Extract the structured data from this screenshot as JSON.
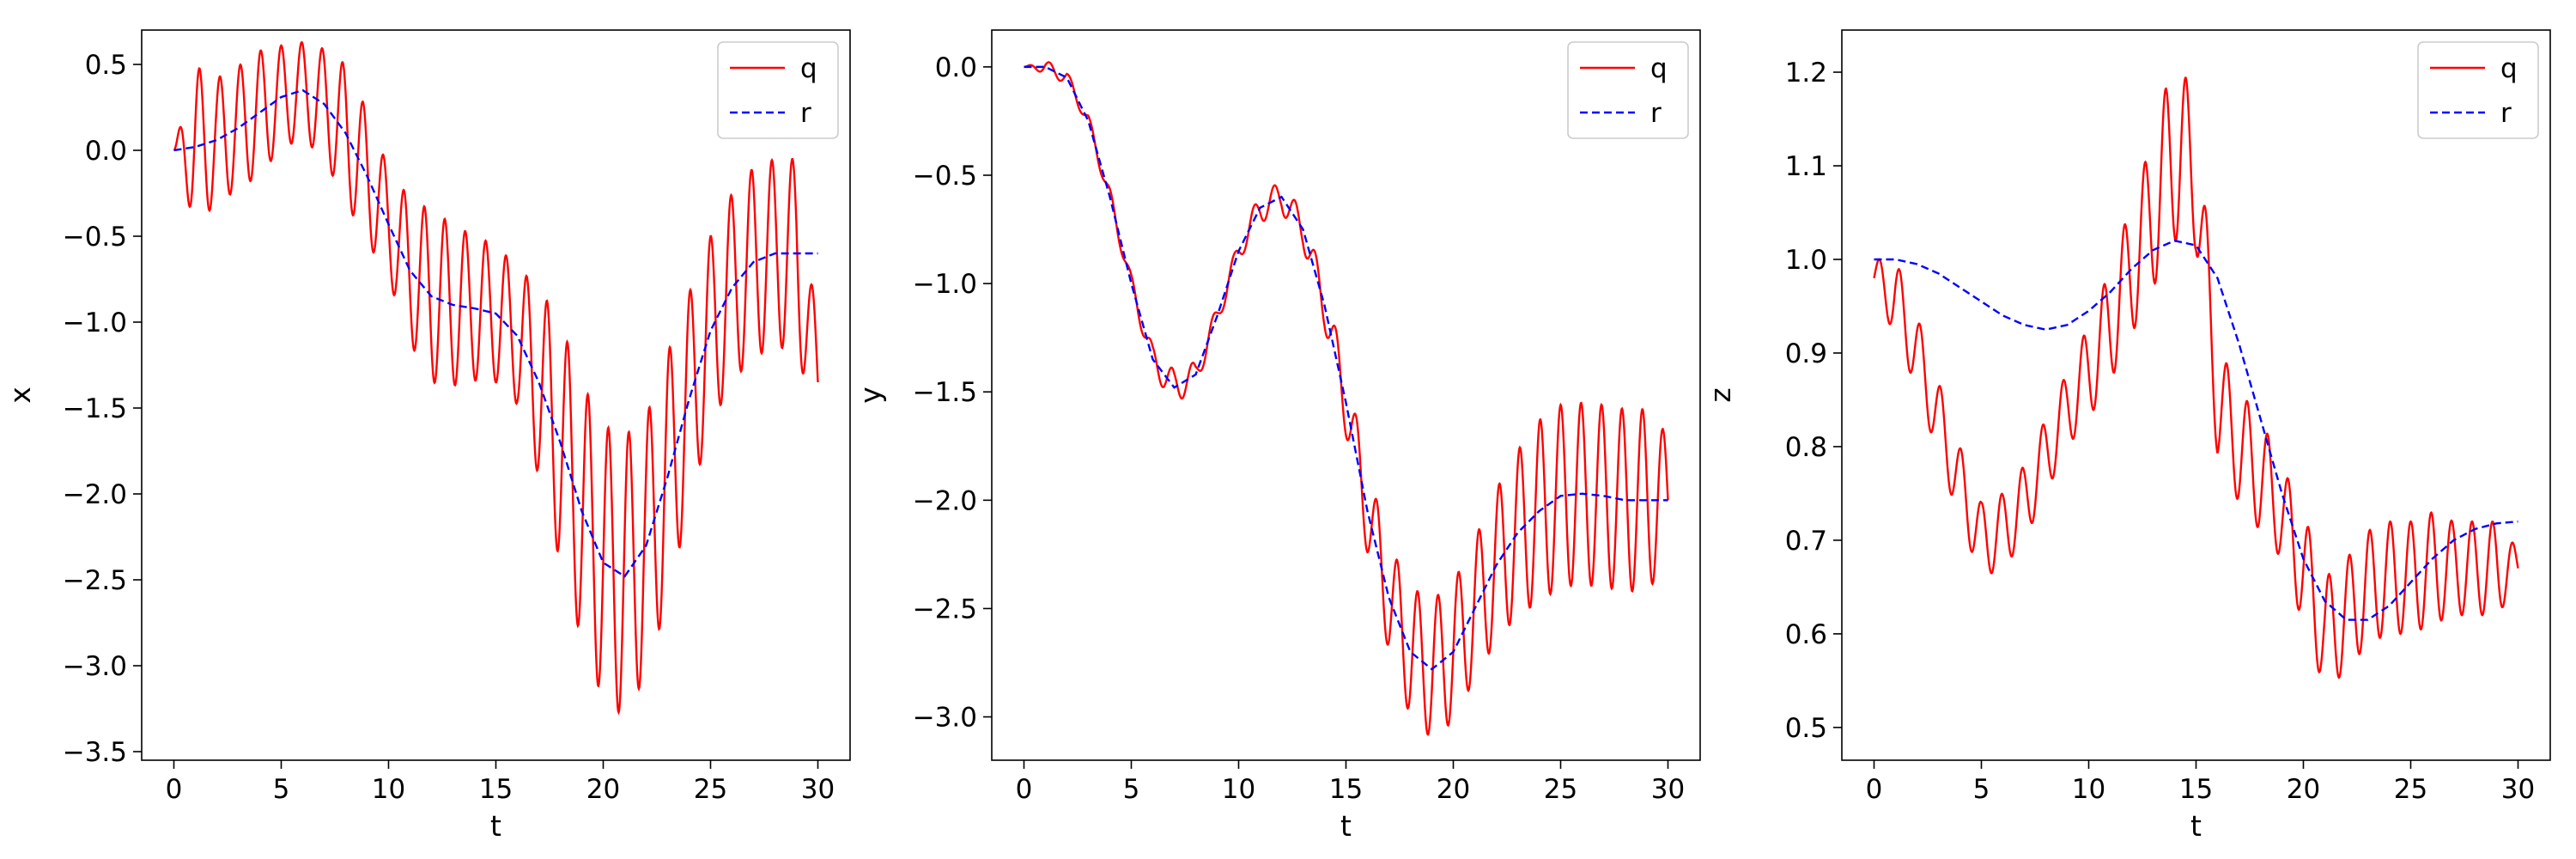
{
  "chart_data": [
    {
      "type": "line",
      "ylabel": "x",
      "xlabel": "t",
      "xlim": [
        -1.5,
        31.5
      ],
      "ylim": [
        -3.55,
        0.7
      ],
      "xticks": [
        0,
        5,
        10,
        15,
        20,
        25,
        30
      ],
      "xtick_labels": [
        "0",
        "5",
        "10",
        "15",
        "20",
        "25",
        "30"
      ],
      "yticks": [
        -3.5,
        -3.0,
        -2.5,
        -2.0,
        -1.5,
        -1.0,
        -0.5,
        0.0,
        0.5
      ],
      "ytick_labels": [
        "−3.5",
        "−3.0",
        "−2.5",
        "−2.0",
        "−1.5",
        "−1.0",
        "−0.5",
        "0.0",
        "0.5"
      ],
      "legend": "top-right",
      "series": [
        {
          "name": "q",
          "color": "#ff0000",
          "style": "solid",
          "x": [
            0,
            1,
            2,
            3,
            4,
            5,
            6,
            7,
            8,
            9,
            10,
            11,
            12,
            13,
            14,
            15,
            16,
            17,
            18,
            19,
            20,
            21,
            22,
            23,
            24,
            25,
            26,
            27,
            28,
            29,
            30
          ],
          "y": [
            0,
            0.02,
            0.06,
            0.13,
            0.22,
            0.31,
            0.35,
            0.27,
            0.1,
            -0.15,
            -0.43,
            -0.7,
            -0.85,
            -0.9,
            -0.92,
            -0.95,
            -1.08,
            -1.35,
            -1.7,
            -2.1,
            -2.4,
            -2.48,
            -2.3,
            -1.9,
            -1.45,
            -1.05,
            -0.8,
            -0.65,
            -0.6,
            -0.6,
            -1.35
          ],
          "amplitude": [
            0,
            0.47,
            0.36,
            0.36,
            0.36,
            0.3,
            0.28,
            0.32,
            0.4,
            0.38,
            0.32,
            0.42,
            0.5,
            0.47,
            0.42,
            0.4,
            0.4,
            0.55,
            0.7,
            0.75,
            0.8,
            0.82,
            0.75,
            0.72,
            0.62,
            0.55,
            0.55,
            0.55,
            0.55,
            0.55,
            0.3
          ]
        },
        {
          "name": "r",
          "color": "#0000ff",
          "style": "dashed",
          "x": [
            0,
            1,
            2,
            3,
            4,
            5,
            6,
            7,
            8,
            9,
            10,
            11,
            12,
            13,
            14,
            15,
            16,
            17,
            18,
            19,
            20,
            21,
            22,
            23,
            24,
            25,
            26,
            27,
            28,
            29,
            30
          ],
          "y": [
            0,
            0.02,
            0.06,
            0.13,
            0.22,
            0.31,
            0.35,
            0.27,
            0.1,
            -0.15,
            -0.43,
            -0.7,
            -0.85,
            -0.9,
            -0.92,
            -0.95,
            -1.08,
            -1.35,
            -1.7,
            -2.1,
            -2.4,
            -2.48,
            -2.3,
            -1.9,
            -1.45,
            -1.05,
            -0.8,
            -0.65,
            -0.6,
            -0.6,
            -0.6
          ]
        }
      ]
    },
    {
      "type": "line",
      "ylabel": "y",
      "xlabel": "t",
      "xlim": [
        -1.5,
        31.5
      ],
      "ylim": [
        -3.2,
        0.17
      ],
      "xticks": [
        0,
        5,
        10,
        15,
        20,
        25,
        30
      ],
      "xtick_labels": [
        "0",
        "5",
        "10",
        "15",
        "20",
        "25",
        "30"
      ],
      "yticks": [
        -3.0,
        -2.5,
        -2.0,
        -1.5,
        -1.0,
        -0.5,
        0.0
      ],
      "ytick_labels": [
        "−3.0",
        "−2.5",
        "−2.0",
        "−1.5",
        "−1.0",
        "−0.5",
        "0.0"
      ],
      "legend": "top-right",
      "series": [
        {
          "name": "q",
          "color": "#ff0000",
          "style": "solid",
          "x": [
            0,
            1,
            2,
            3,
            4,
            5,
            6,
            7,
            8,
            9,
            10,
            11,
            12,
            13,
            14,
            15,
            16,
            17,
            18,
            19,
            20,
            21,
            22,
            23,
            24,
            25,
            26,
            27,
            28,
            29,
            30
          ],
          "y": [
            0,
            0,
            -0.05,
            -0.25,
            -0.6,
            -1.0,
            -1.35,
            -1.48,
            -1.42,
            -1.15,
            -0.85,
            -0.65,
            -0.6,
            -0.75,
            -1.1,
            -1.55,
            -2.05,
            -2.45,
            -2.7,
            -2.78,
            -2.7,
            -2.5,
            -2.3,
            -2.15,
            -2.05,
            -1.98,
            -1.97,
            -1.98,
            -2.0,
            -2.0,
            -2.0
          ],
          "amplitude": [
            0,
            0.03,
            0.03,
            0.03,
            0.04,
            0.04,
            0.06,
            0.08,
            0.06,
            0.05,
            0.05,
            0.07,
            0.07,
            0.08,
            0.1,
            0.15,
            0.2,
            0.25,
            0.3,
            0.32,
            0.32,
            0.32,
            0.35,
            0.38,
            0.42,
            0.42,
            0.42,
            0.42,
            0.42,
            0.42,
            0.3
          ]
        },
        {
          "name": "r",
          "color": "#0000ff",
          "style": "dashed",
          "x": [
            0,
            1,
            2,
            3,
            4,
            5,
            6,
            7,
            8,
            9,
            10,
            11,
            12,
            13,
            14,
            15,
            16,
            17,
            18,
            19,
            20,
            21,
            22,
            23,
            24,
            25,
            26,
            27,
            28,
            29,
            30
          ],
          "y": [
            0,
            0,
            -0.05,
            -0.25,
            -0.6,
            -1.0,
            -1.35,
            -1.48,
            -1.42,
            -1.15,
            -0.85,
            -0.65,
            -0.6,
            -0.75,
            -1.1,
            -1.55,
            -2.05,
            -2.45,
            -2.7,
            -2.78,
            -2.7,
            -2.5,
            -2.3,
            -2.15,
            -2.05,
            -1.98,
            -1.97,
            -1.98,
            -2.0,
            -2.0,
            -2.0
          ]
        }
      ]
    },
    {
      "type": "line",
      "ylabel": "z",
      "xlabel": "t",
      "xlim": [
        -1.5,
        31.5
      ],
      "ylim": [
        0.465,
        1.245
      ],
      "xticks": [
        0,
        5,
        10,
        15,
        20,
        25,
        30
      ],
      "xtick_labels": [
        "0",
        "5",
        "10",
        "15",
        "20",
        "25",
        "30"
      ],
      "yticks": [
        0.5,
        0.6,
        0.7,
        0.8,
        0.9,
        1.0,
        1.1,
        1.2
      ],
      "ytick_labels": [
        "0.5",
        "0.6",
        "0.7",
        "0.8",
        "0.9",
        "1.0",
        "1.1",
        "1.2"
      ],
      "legend": "top-right",
      "series": [
        {
          "name": "q",
          "color": "#ff0000",
          "style": "solid",
          "x": [
            0,
            1,
            2,
            3,
            4,
            5,
            6,
            7,
            8,
            9,
            10,
            11,
            12,
            13,
            14,
            15,
            16,
            17,
            18,
            19,
            20,
            21,
            22,
            23,
            24,
            25,
            26,
            27,
            28,
            29,
            30
          ],
          "y": [
            0.98,
            0.96,
            0.9,
            0.83,
            0.76,
            0.7,
            0.71,
            0.74,
            0.79,
            0.84,
            0.88,
            0.93,
            0.99,
            1.05,
            1.12,
            1.09,
            0.85,
            0.8,
            0.77,
            0.73,
            0.67,
            0.6,
            0.62,
            0.65,
            0.66,
            0.66,
            0.67,
            0.67,
            0.67,
            0.67,
            0.67
          ],
          "amplitude": [
            0.02,
            0.04,
            0.04,
            0.04,
            0.04,
            0.04,
            0.04,
            0.04,
            0.04,
            0.04,
            0.05,
            0.06,
            0.07,
            0.08,
            0.1,
            0.08,
            0.06,
            0.06,
            0.06,
            0.05,
            0.06,
            0.06,
            0.06,
            0.06,
            0.06,
            0.06,
            0.06,
            0.05,
            0.05,
            0.05,
            0.02
          ]
        },
        {
          "name": "r",
          "color": "#0000ff",
          "style": "dashed",
          "x": [
            0,
            1,
            2,
            3,
            4,
            5,
            6,
            7,
            8,
            9,
            10,
            11,
            12,
            13,
            14,
            15,
            16,
            17,
            18,
            19,
            20,
            21,
            22,
            23,
            24,
            25,
            26,
            27,
            28,
            29,
            30
          ],
          "y": [
            1.0,
            1.0,
            0.995,
            0.985,
            0.97,
            0.955,
            0.94,
            0.93,
            0.925,
            0.93,
            0.945,
            0.965,
            0.99,
            1.01,
            1.02,
            1.015,
            0.98,
            0.91,
            0.83,
            0.75,
            0.68,
            0.635,
            0.615,
            0.615,
            0.63,
            0.655,
            0.68,
            0.7,
            0.712,
            0.718,
            0.72
          ]
        }
      ]
    }
  ]
}
